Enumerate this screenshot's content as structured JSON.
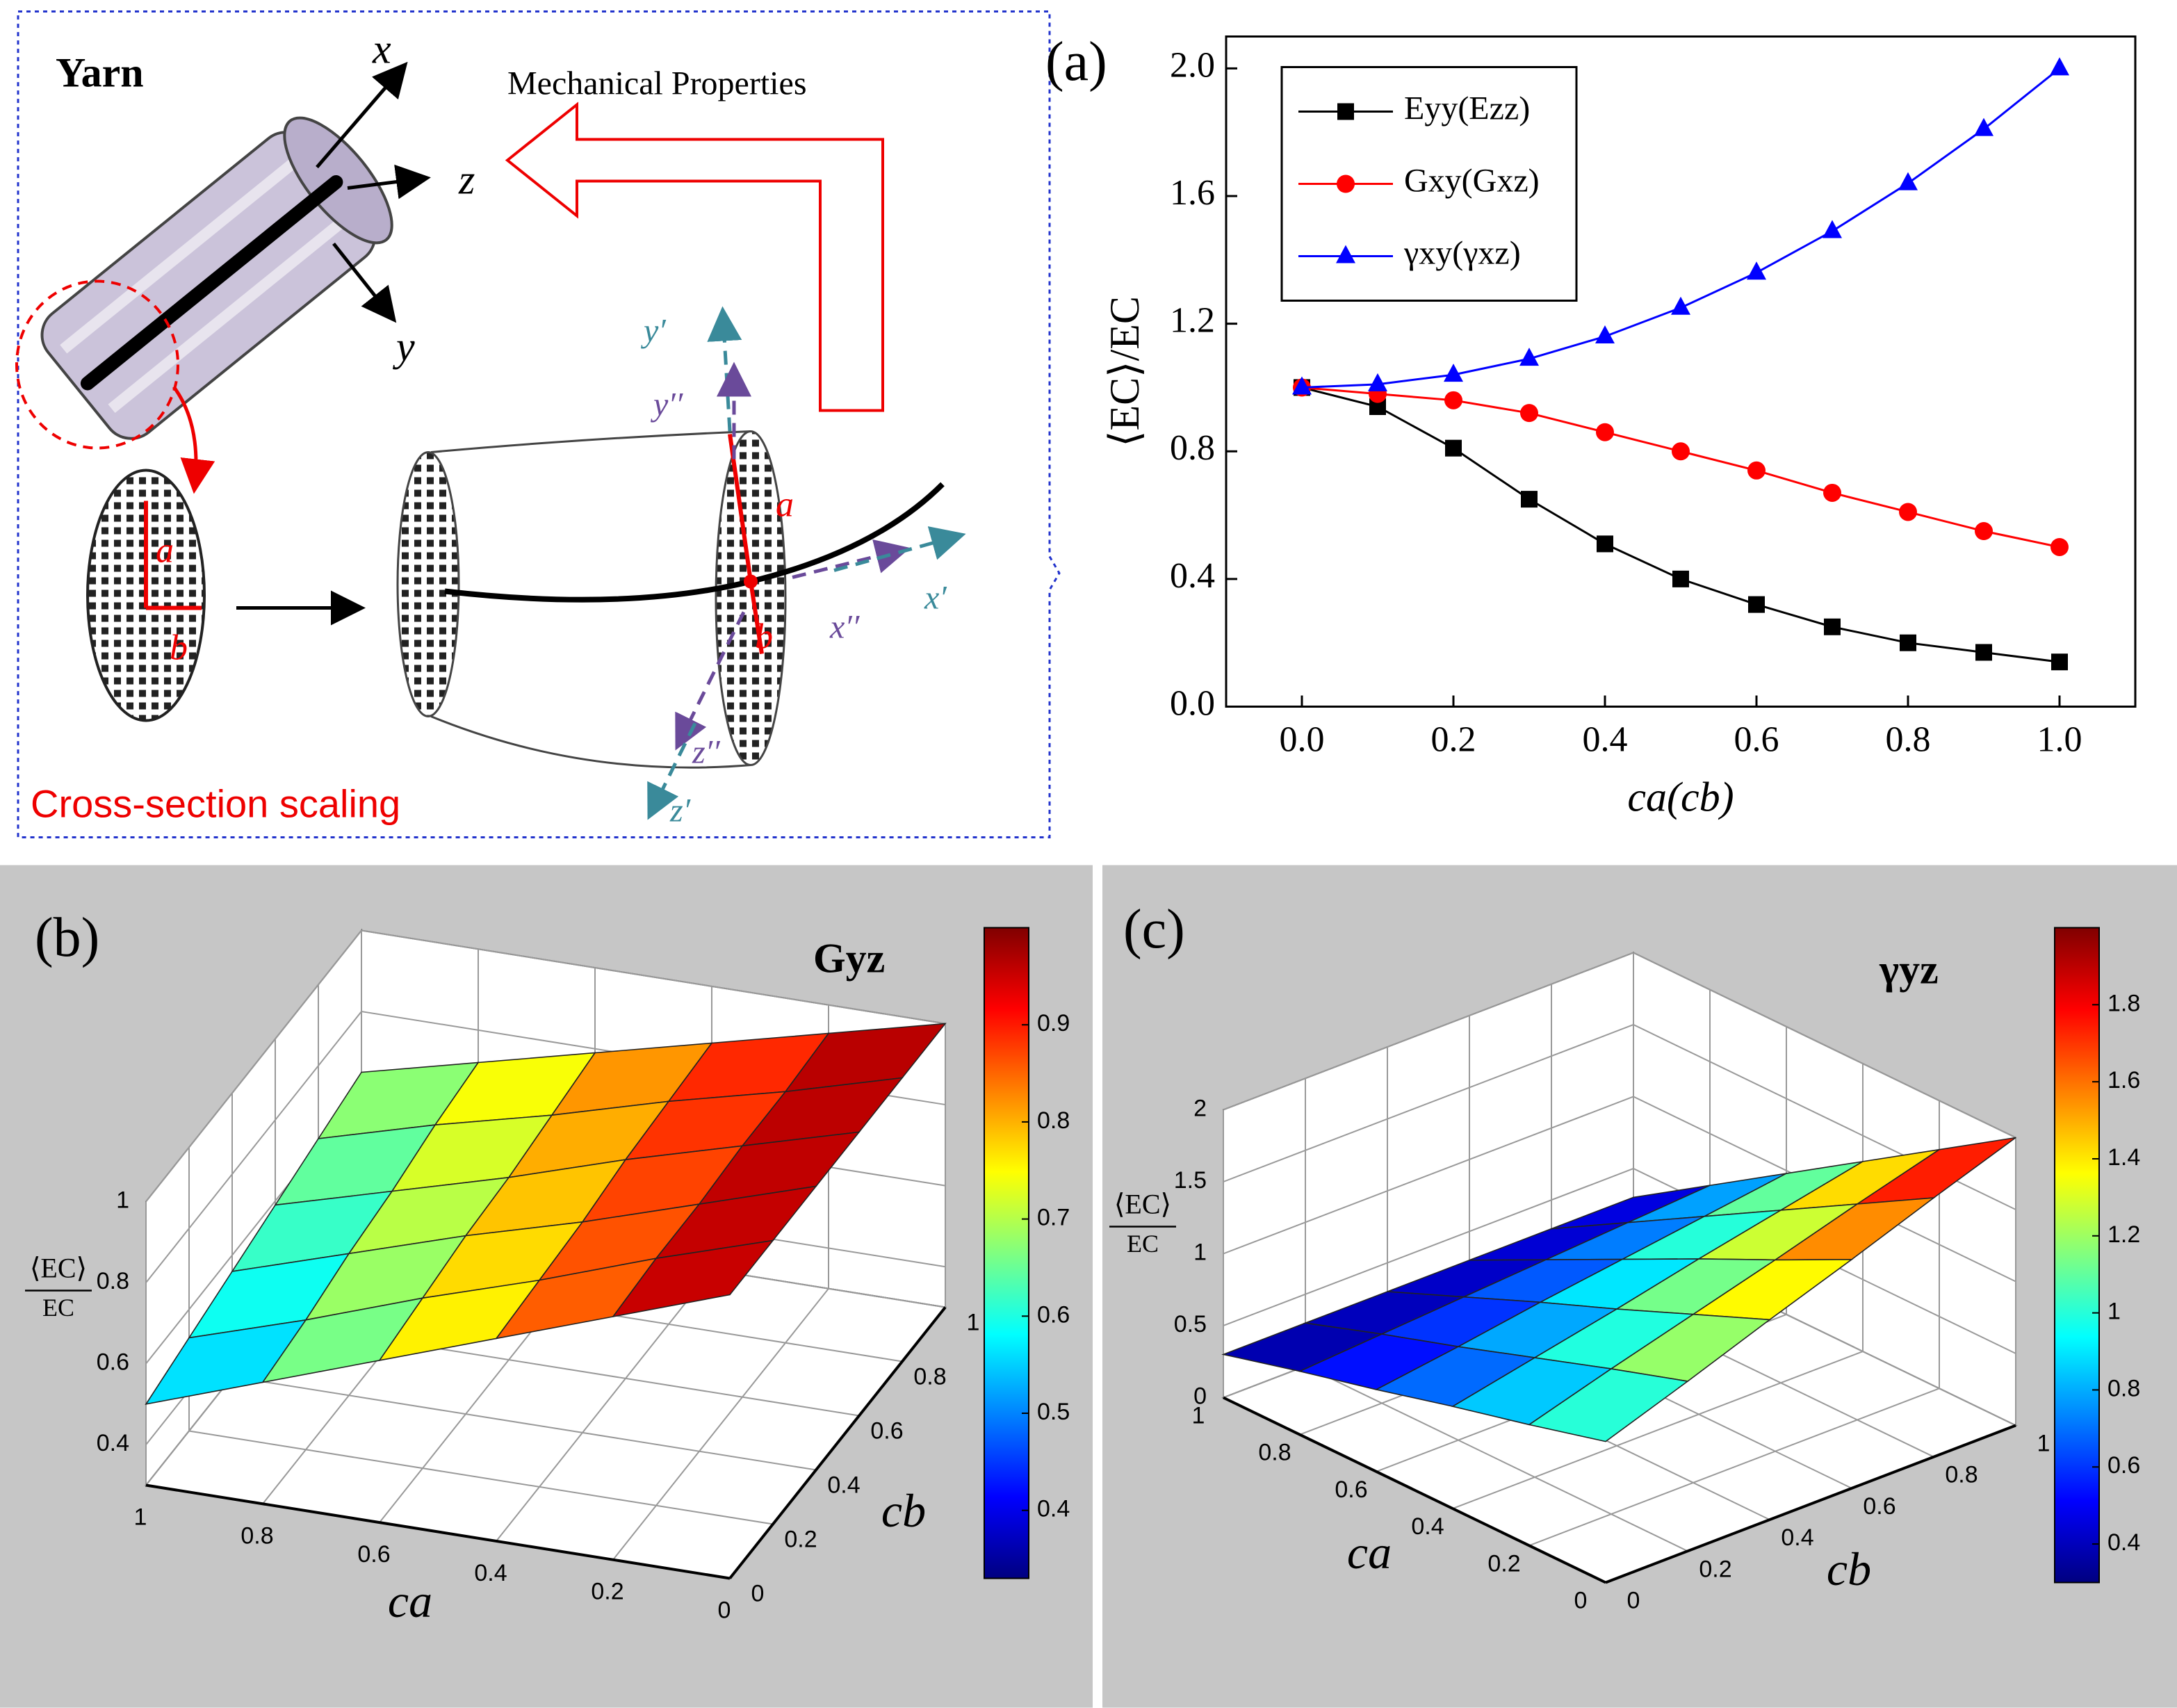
{
  "diagram": {
    "yarn": "Yarn",
    "x": "x",
    "z": "z",
    "y": "y",
    "mechanical": "Mechanical Properties",
    "scaling": "Cross-section scaling",
    "a1": "a",
    "b1": "b",
    "a2": "a",
    "b2": "b",
    "y1": "y′",
    "y2": "y′′",
    "x2": "x′′",
    "x1": "x′",
    "z2": "z′′",
    "z1": "z′"
  },
  "chart_data": [
    {
      "type": "line",
      "panel_label": "(a)",
      "xlabel": "ca(cb)",
      "ylabel": "⟨EC⟩/EC",
      "x": [
        0,
        0.1,
        0.2,
        0.3,
        0.4,
        0.5,
        0.6,
        0.7,
        0.8,
        0.9,
        1.0
      ],
      "series": [
        {
          "name": "Eyy(Ezz)",
          "color": "#000000",
          "marker": "square",
          "values": [
            1.0,
            0.94,
            0.81,
            0.65,
            0.51,
            0.4,
            0.32,
            0.25,
            0.2,
            0.17,
            0.14
          ]
        },
        {
          "name": "Gxy(Gxz)",
          "color": "#ff0000",
          "marker": "circle",
          "values": [
            1.0,
            0.98,
            0.96,
            0.92,
            0.86,
            0.8,
            0.74,
            0.67,
            0.61,
            0.55,
            0.5
          ]
        },
        {
          "name": "γxy(γxz)",
          "color": "#0000ff",
          "marker": "triangle",
          "values": [
            1.0,
            1.01,
            1.04,
            1.09,
            1.16,
            1.25,
            1.36,
            1.49,
            1.64,
            1.81,
            2.0
          ]
        }
      ],
      "xlim": [
        -0.1,
        1.1
      ],
      "ylim": [
        0,
        2.1
      ],
      "xticks": [
        {
          "value": 0,
          "label": "0.0"
        },
        0.2,
        0.4,
        0.6,
        0.8,
        {
          "value": 1,
          "label": "1.0"
        }
      ],
      "yticks": [
        {
          "value": 0,
          "label": "0.0"
        },
        0.4,
        0.8,
        1.2,
        1.6,
        {
          "value": 2,
          "label": "2.0"
        }
      ],
      "legend": "upper left"
    },
    {
      "type": "surface",
      "panel_label": "(b)",
      "title": "Gyz",
      "zlabel_top": "⟨EC⟩",
      "zlabel_bottom": "EC",
      "xlabel": "ca",
      "ylabel": "cb",
      "x": [
        0,
        0.2,
        0.4,
        0.6,
        0.8,
        1
      ],
      "y": [
        0,
        0.2,
        0.4,
        0.6,
        0.8,
        1
      ],
      "z": [
        [
          1,
          0.9,
          0.8,
          0.7,
          0.6,
          0.5
        ],
        [
          1,
          0.91,
          0.81,
          0.72,
          0.62,
          0.53
        ],
        [
          1,
          0.91,
          0.82,
          0.74,
          0.65,
          0.56
        ],
        [
          1,
          0.92,
          0.84,
          0.75,
          0.67,
          0.59
        ],
        [
          1,
          0.92,
          0.85,
          0.77,
          0.7,
          0.62
        ],
        [
          1,
          0.93,
          0.86,
          0.79,
          0.72,
          0.65
        ]
      ],
      "xlim": [
        0,
        1
      ],
      "ylim": [
        0,
        1
      ],
      "zlim": [
        0.3,
        1
      ],
      "xticks": [
        0,
        0.2,
        0.4,
        0.6,
        0.8,
        1
      ],
      "yticks": [
        0,
        0.2,
        0.4,
        0.6,
        0.8,
        1
      ],
      "zticks": [
        0.4,
        0.6,
        0.8,
        1
      ],
      "colormap": "jet",
      "clim": [
        0.33,
        1
      ],
      "cticks": [
        0.4,
        0.5,
        0.6,
        0.7,
        0.8,
        0.9
      ]
    },
    {
      "type": "surface",
      "panel_label": "(c)",
      "title": "γyz",
      "zlabel_top": "⟨EC⟩",
      "zlabel_bottom": "EC",
      "xlabel": "ca",
      "ylabel": "cb",
      "x": [
        0,
        0.2,
        0.4,
        0.6,
        0.8,
        1
      ],
      "y": [
        0,
        0.2,
        0.4,
        0.6,
        0.8,
        1
      ],
      "z": [
        [
          0.98,
          0.84,
          0.71,
          0.57,
          0.44,
          0.3
        ],
        [
          1.18,
          1.01,
          0.83,
          0.65,
          0.48,
          0.3
        ],
        [
          1.39,
          1.17,
          0.95,
          0.74,
          0.52,
          0.3
        ],
        [
          1.59,
          1.33,
          1.08,
          0.82,
          0.56,
          0.3
        ],
        [
          1.8,
          1.5,
          1.2,
          0.9,
          0.6,
          0.3
        ],
        [
          2.0,
          1.66,
          1.32,
          0.98,
          0.64,
          0.3
        ]
      ],
      "xlim": [
        0,
        1
      ],
      "ylim": [
        0,
        1
      ],
      "zlim": [
        0,
        2
      ],
      "xticks": [
        0,
        0.2,
        0.4,
        0.6,
        0.8,
        1
      ],
      "yticks": [
        0,
        0.2,
        0.4,
        0.6,
        0.8,
        1
      ],
      "zticks": [
        0,
        0.5,
        1,
        1.5,
        2
      ],
      "colormap": "jet",
      "clim": [
        0.3,
        2
      ],
      "cticks": [
        0.4,
        0.6,
        0.8,
        1,
        1.2,
        1.4,
        1.6,
        1.8
      ]
    }
  ]
}
